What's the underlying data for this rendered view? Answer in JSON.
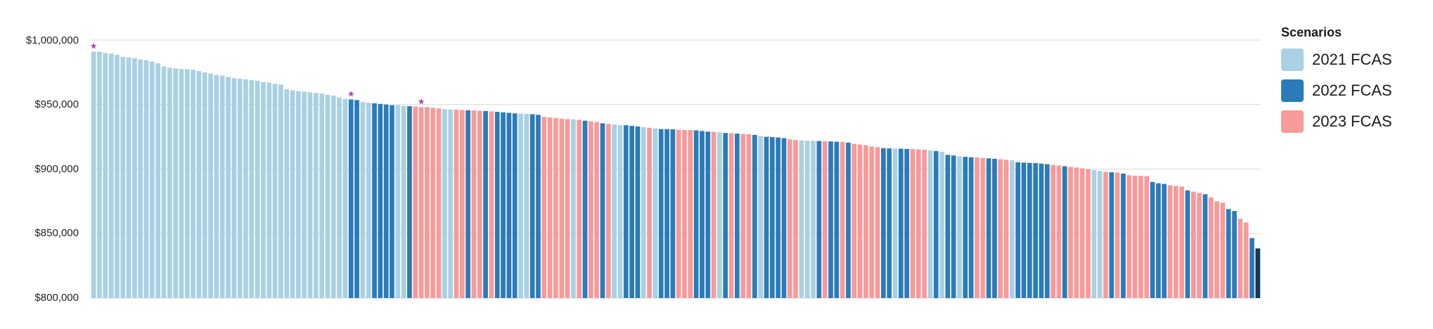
{
  "chart_data": {
    "type": "bar",
    "ylim": [
      800000,
      1000000
    ],
    "yticks": [
      800000,
      850000,
      900000,
      950000,
      1000000
    ],
    "ytick_labels": [
      "$800,000",
      "$850,000",
      "$900,000",
      "$950,000",
      "$1,000,000"
    ],
    "grid": true,
    "legend_position": "top-right",
    "legend_title": "Scenarios",
    "series": [
      {
        "name": "2021 FCAS",
        "color": "#a9d0e3"
      },
      {
        "name": "2022 FCAS",
        "color": "#2b7bb9"
      },
      {
        "name": "2023 FCAS",
        "color": "#f79a99"
      }
    ],
    "highlight_color": "#14375a",
    "star_color": "#b040c0",
    "starred_bars": [
      0,
      44,
      56
    ],
    "bars": [
      {
        "s": 0,
        "v": 991000
      },
      {
        "s": 0,
        "v": 991000
      },
      {
        "s": 0,
        "v": 990000
      },
      {
        "s": 0,
        "v": 989500
      },
      {
        "s": 0,
        "v": 988500
      },
      {
        "s": 0,
        "v": 987000
      },
      {
        "s": 0,
        "v": 986500
      },
      {
        "s": 0,
        "v": 986000
      },
      {
        "s": 0,
        "v": 985000
      },
      {
        "s": 0,
        "v": 984500
      },
      {
        "s": 0,
        "v": 983500
      },
      {
        "s": 0,
        "v": 982000
      },
      {
        "s": 0,
        "v": 979500
      },
      {
        "s": 0,
        "v": 978500
      },
      {
        "s": 0,
        "v": 978000
      },
      {
        "s": 0,
        "v": 977500
      },
      {
        "s": 0,
        "v": 977500
      },
      {
        "s": 0,
        "v": 977000
      },
      {
        "s": 0,
        "v": 976000
      },
      {
        "s": 0,
        "v": 975000
      },
      {
        "s": 0,
        "v": 974000
      },
      {
        "s": 0,
        "v": 973000
      },
      {
        "s": 0,
        "v": 972500
      },
      {
        "s": 0,
        "v": 971500
      },
      {
        "s": 0,
        "v": 970500
      },
      {
        "s": 0,
        "v": 970000
      },
      {
        "s": 0,
        "v": 969500
      },
      {
        "s": 0,
        "v": 969000
      },
      {
        "s": 0,
        "v": 968500
      },
      {
        "s": 0,
        "v": 967500
      },
      {
        "s": 0,
        "v": 967000
      },
      {
        "s": 0,
        "v": 966000
      },
      {
        "s": 0,
        "v": 965500
      },
      {
        "s": 0,
        "v": 962000
      },
      {
        "s": 0,
        "v": 961000
      },
      {
        "s": 0,
        "v": 960500
      },
      {
        "s": 0,
        "v": 960000
      },
      {
        "s": 0,
        "v": 959500
      },
      {
        "s": 0,
        "v": 959000
      },
      {
        "s": 0,
        "v": 958500
      },
      {
        "s": 0,
        "v": 957500
      },
      {
        "s": 0,
        "v": 957000
      },
      {
        "s": 0,
        "v": 955500
      },
      {
        "s": 0,
        "v": 954500
      },
      {
        "s": 1,
        "v": 954000
      },
      {
        "s": 1,
        "v": 953500
      },
      {
        "s": 0,
        "v": 952000
      },
      {
        "s": 0,
        "v": 951500
      },
      {
        "s": 1,
        "v": 951000
      },
      {
        "s": 1,
        "v": 950500
      },
      {
        "s": 1,
        "v": 950000
      },
      {
        "s": 1,
        "v": 949500
      },
      {
        "s": 0,
        "v": 949500
      },
      {
        "s": 0,
        "v": 949000
      },
      {
        "s": 1,
        "v": 948800
      },
      {
        "s": 2,
        "v": 948500
      },
      {
        "s": 2,
        "v": 948000
      },
      {
        "s": 2,
        "v": 948000
      },
      {
        "s": 2,
        "v": 947500
      },
      {
        "s": 2,
        "v": 947000
      },
      {
        "s": 0,
        "v": 946500
      },
      {
        "s": 0,
        "v": 946200
      },
      {
        "s": 2,
        "v": 946000
      },
      {
        "s": 2,
        "v": 945800
      },
      {
        "s": 1,
        "v": 945600
      },
      {
        "s": 2,
        "v": 945400
      },
      {
        "s": 2,
        "v": 945200
      },
      {
        "s": 1,
        "v": 945000
      },
      {
        "s": 2,
        "v": 944700
      },
      {
        "s": 1,
        "v": 944400
      },
      {
        "s": 1,
        "v": 944000
      },
      {
        "s": 1,
        "v": 943600
      },
      {
        "s": 1,
        "v": 943200
      },
      {
        "s": 0,
        "v": 943000
      },
      {
        "s": 0,
        "v": 942800
      },
      {
        "s": 1,
        "v": 942500
      },
      {
        "s": 1,
        "v": 942000
      },
      {
        "s": 2,
        "v": 940500
      },
      {
        "s": 2,
        "v": 940000
      },
      {
        "s": 2,
        "v": 939500
      },
      {
        "s": 2,
        "v": 939000
      },
      {
        "s": 2,
        "v": 938700
      },
      {
        "s": 0,
        "v": 938500
      },
      {
        "s": 2,
        "v": 938200
      },
      {
        "s": 1,
        "v": 937500
      },
      {
        "s": 2,
        "v": 937000
      },
      {
        "s": 2,
        "v": 936500
      },
      {
        "s": 1,
        "v": 935500
      },
      {
        "s": 2,
        "v": 935000
      },
      {
        "s": 0,
        "v": 934500
      },
      {
        "s": 0,
        "v": 934000
      },
      {
        "s": 1,
        "v": 934000
      },
      {
        "s": 1,
        "v": 933500
      },
      {
        "s": 1,
        "v": 933000
      },
      {
        "s": 0,
        "v": 932500
      },
      {
        "s": 2,
        "v": 932000
      },
      {
        "s": 0,
        "v": 931500
      },
      {
        "s": 1,
        "v": 931000
      },
      {
        "s": 1,
        "v": 931000
      },
      {
        "s": 1,
        "v": 930800
      },
      {
        "s": 2,
        "v": 930500
      },
      {
        "s": 2,
        "v": 930300
      },
      {
        "s": 2,
        "v": 930200
      },
      {
        "s": 1,
        "v": 930000
      },
      {
        "s": 1,
        "v": 929500
      },
      {
        "s": 1,
        "v": 929000
      },
      {
        "s": 2,
        "v": 928800
      },
      {
        "s": 0,
        "v": 928500
      },
      {
        "s": 1,
        "v": 928000
      },
      {
        "s": 2,
        "v": 927800
      },
      {
        "s": 1,
        "v": 927500
      },
      {
        "s": 2,
        "v": 927200
      },
      {
        "s": 2,
        "v": 927000
      },
      {
        "s": 1,
        "v": 926500
      },
      {
        "s": 0,
        "v": 925500
      },
      {
        "s": 1,
        "v": 925000
      },
      {
        "s": 1,
        "v": 924800
      },
      {
        "s": 1,
        "v": 924500
      },
      {
        "s": 1,
        "v": 924000
      },
      {
        "s": 2,
        "v": 923000
      },
      {
        "s": 2,
        "v": 922500
      },
      {
        "s": 0,
        "v": 922200
      },
      {
        "s": 0,
        "v": 922000
      },
      {
        "s": 0,
        "v": 921900
      },
      {
        "s": 1,
        "v": 921800
      },
      {
        "s": 2,
        "v": 921600
      },
      {
        "s": 1,
        "v": 921400
      },
      {
        "s": 1,
        "v": 921200
      },
      {
        "s": 2,
        "v": 921000
      },
      {
        "s": 1,
        "v": 920500
      },
      {
        "s": 2,
        "v": 919500
      },
      {
        "s": 2,
        "v": 919000
      },
      {
        "s": 2,
        "v": 918500
      },
      {
        "s": 2,
        "v": 917500
      },
      {
        "s": 2,
        "v": 917000
      },
      {
        "s": 1,
        "v": 916200
      },
      {
        "s": 1,
        "v": 916000
      },
      {
        "s": 0,
        "v": 915900
      },
      {
        "s": 1,
        "v": 915800
      },
      {
        "s": 1,
        "v": 915600
      },
      {
        "s": 2,
        "v": 915500
      },
      {
        "s": 2,
        "v": 915300
      },
      {
        "s": 2,
        "v": 915000
      },
      {
        "s": 0,
        "v": 914500
      },
      {
        "s": 1,
        "v": 914000
      },
      {
        "s": 0,
        "v": 913500
      },
      {
        "s": 1,
        "v": 911000
      },
      {
        "s": 1,
        "v": 910500
      },
      {
        "s": 0,
        "v": 910000
      },
      {
        "s": 1,
        "v": 909500
      },
      {
        "s": 1,
        "v": 909200
      },
      {
        "s": 2,
        "v": 909000
      },
      {
        "s": 2,
        "v": 908600
      },
      {
        "s": 1,
        "v": 908300
      },
      {
        "s": 1,
        "v": 908000
      },
      {
        "s": 2,
        "v": 907600
      },
      {
        "s": 2,
        "v": 907200
      },
      {
        "s": 0,
        "v": 906800
      },
      {
        "s": 1,
        "v": 905300
      },
      {
        "s": 1,
        "v": 905000
      },
      {
        "s": 1,
        "v": 904800
      },
      {
        "s": 1,
        "v": 904600
      },
      {
        "s": 1,
        "v": 904200
      },
      {
        "s": 1,
        "v": 903800
      },
      {
        "s": 2,
        "v": 903200
      },
      {
        "s": 2,
        "v": 902800
      },
      {
        "s": 1,
        "v": 902200
      },
      {
        "s": 2,
        "v": 901700
      },
      {
        "s": 2,
        "v": 901200
      },
      {
        "s": 2,
        "v": 900600
      },
      {
        "s": 2,
        "v": 899800
      },
      {
        "s": 0,
        "v": 899200
      },
      {
        "s": 0,
        "v": 898600
      },
      {
        "s": 2,
        "v": 897800
      },
      {
        "s": 1,
        "v": 897500
      },
      {
        "s": 2,
        "v": 897200
      },
      {
        "s": 1,
        "v": 896500
      },
      {
        "s": 2,
        "v": 895200
      },
      {
        "s": 2,
        "v": 894900
      },
      {
        "s": 2,
        "v": 894700
      },
      {
        "s": 2,
        "v": 894500
      },
      {
        "s": 1,
        "v": 890000
      },
      {
        "s": 1,
        "v": 889000
      },
      {
        "s": 1,
        "v": 888500
      },
      {
        "s": 2,
        "v": 887500
      },
      {
        "s": 2,
        "v": 887000
      },
      {
        "s": 2,
        "v": 886500
      },
      {
        "s": 1,
        "v": 883500
      },
      {
        "s": 2,
        "v": 882500
      },
      {
        "s": 2,
        "v": 881500
      },
      {
        "s": 1,
        "v": 880500
      },
      {
        "s": 2,
        "v": 878000
      },
      {
        "s": 2,
        "v": 875000
      },
      {
        "s": 2,
        "v": 874000
      },
      {
        "s": 1,
        "v": 869000
      },
      {
        "s": 1,
        "v": 867500
      },
      {
        "s": 2,
        "v": 861500
      },
      {
        "s": 2,
        "v": 858500
      },
      {
        "s": 1,
        "v": 846500
      },
      {
        "s": 3,
        "v": 838500
      }
    ]
  }
}
